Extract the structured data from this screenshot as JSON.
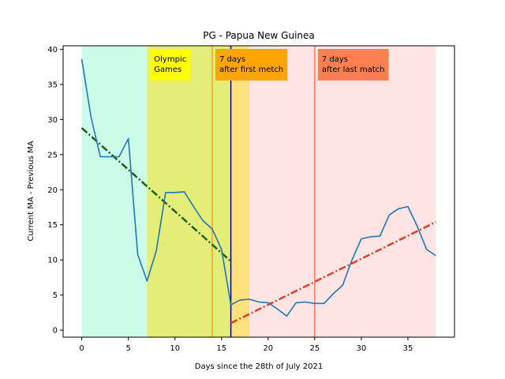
{
  "chart_data": {
    "type": "line",
    "title": "PG - Papua New Guinea",
    "xlabel": "Days since the 28th of July 2021",
    "ylabel": "Current MA - Previous MA",
    "xlim": [
      -2,
      40
    ],
    "ylim": [
      -1,
      40.5
    ],
    "xticks": [
      0,
      5,
      10,
      15,
      20,
      25,
      30,
      35
    ],
    "yticks": [
      0,
      5,
      10,
      15,
      20,
      25,
      30,
      35,
      40
    ],
    "grid": false,
    "series": [
      {
        "color": "#1f77b4",
        "x": [
          0,
          1,
          2,
          3,
          4,
          5,
          6,
          7,
          8,
          9,
          10,
          11,
          12,
          13,
          14,
          15,
          16,
          17,
          18,
          19,
          20,
          21,
          22,
          23,
          24,
          25,
          26,
          27,
          28,
          29,
          30,
          31,
          32,
          33,
          34,
          35,
          36,
          37,
          38
        ],
        "y": [
          38.6,
          30.3,
          24.7,
          24.7,
          24.7,
          27.3,
          10.8,
          7.0,
          11.3,
          19.6,
          19.6,
          19.7,
          17.6,
          15.6,
          14.4,
          11.5,
          3.6,
          4.3,
          4.4,
          4.0,
          3.9,
          3.0,
          2.0,
          3.9,
          4.0,
          3.8,
          3.8,
          5.2,
          6.4,
          10.0,
          13.0,
          13.3,
          13.4,
          16.4,
          17.3,
          17.6,
          14.8,
          11.5,
          10.6
        ]
      }
    ],
    "trend_lines": [
      {
        "color": "#1a5e1a",
        "x": [
          0,
          16
        ],
        "y": [
          28.8,
          9.8
        ]
      },
      {
        "color": "#e0402a",
        "x": [
          16,
          38
        ],
        "y": [
          1.0,
          15.4
        ]
      }
    ],
    "shaded_regions": [
      {
        "x0": 0,
        "x1": 7,
        "color": "#ccfbea"
      },
      {
        "x0": 7,
        "x1": 16,
        "color": "#e5ed79"
      },
      {
        "x0": 16,
        "x1": 18,
        "color": "#fde27b"
      },
      {
        "x0": 18,
        "x1": 38,
        "color": "#fee4e2"
      }
    ],
    "vertical_lines": [
      {
        "x": 14,
        "color": "#ff9f1a"
      },
      {
        "x": 16,
        "color": "#00008b"
      },
      {
        "x": 25,
        "color": "#ff7f50"
      }
    ],
    "annotations": [
      {
        "lines": [
          "Olympic",
          "Games"
        ],
        "x": 7,
        "bg": "#ffff00"
      },
      {
        "lines": [
          "7 days",
          "after first metch"
        ],
        "x": 14,
        "bg": "#ffa500"
      },
      {
        "lines": [
          "7 days",
          "after last match"
        ],
        "x": 25,
        "bg": "#ff7f50"
      }
    ]
  }
}
